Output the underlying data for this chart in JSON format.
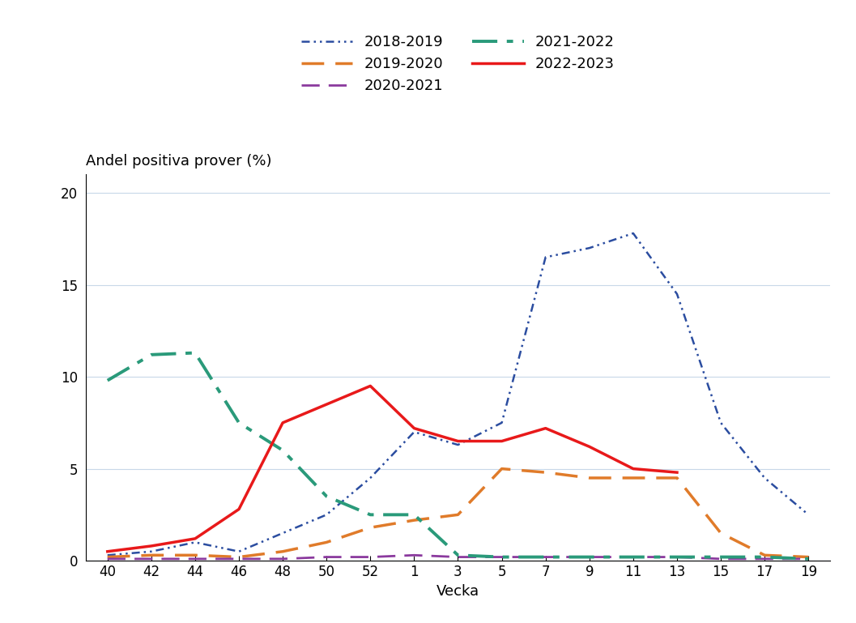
{
  "ylabel": "Andel positiva prover (%)",
  "xlabel": "Vecka",
  "x_labels": [
    40,
    42,
    44,
    46,
    48,
    50,
    52,
    1,
    3,
    5,
    7,
    9,
    11,
    13,
    15,
    17,
    19
  ],
  "ylim": [
    0,
    21
  ],
  "yticks": [
    0,
    5,
    10,
    15,
    20
  ],
  "series": [
    {
      "label": "2018-2019",
      "color": "#2b4da0",
      "style_key": "dashdotdot",
      "linewidth": 1.8,
      "values": [
        0.3,
        0.5,
        1.0,
        0.5,
        1.5,
        2.5,
        4.5,
        7.0,
        6.3,
        7.5,
        16.5,
        17.0,
        17.8,
        14.5,
        7.5,
        4.5,
        2.5
      ]
    },
    {
      "label": "2019-2020",
      "color": "#e07b2a",
      "style_key": "longdash",
      "linewidth": 2.5,
      "values": [
        0.2,
        0.3,
        0.3,
        0.2,
        0.5,
        1.0,
        1.8,
        2.2,
        2.5,
        5.0,
        4.8,
        4.5,
        4.5,
        4.5,
        1.5,
        0.3,
        0.2
      ]
    },
    {
      "label": "2020-2021",
      "color": "#8b3a9e",
      "style_key": "longdash",
      "linewidth": 2.0,
      "values": [
        0.1,
        0.1,
        0.1,
        0.1,
        0.1,
        0.2,
        0.2,
        0.3,
        0.2,
        0.2,
        0.2,
        0.2,
        0.2,
        0.2,
        0.1,
        0.1,
        0.1
      ]
    },
    {
      "label": "2021-2022",
      "color": "#2a9a7a",
      "style_key": "dashdot",
      "linewidth": 2.8,
      "values": [
        9.8,
        11.2,
        11.3,
        7.5,
        6.0,
        3.5,
        2.5,
        2.5,
        0.3,
        0.2,
        0.2,
        0.2,
        0.2,
        0.2,
        0.2,
        0.2,
        0.1
      ]
    },
    {
      "label": "2022-2023",
      "color": "#e8191a",
      "style_key": "solid",
      "linewidth": 2.5,
      "values": [
        0.5,
        0.8,
        1.2,
        2.8,
        7.5,
        8.5,
        9.5,
        7.2,
        6.5,
        6.5,
        7.2,
        6.2,
        5.0,
        4.8,
        null,
        null,
        null
      ]
    }
  ],
  "background_color": "#ffffff",
  "grid_color": "#c8d8e8",
  "legend_fontsize": 13,
  "axis_fontsize": 13,
  "tick_fontsize": 12,
  "ylabel_fontsize": 13
}
